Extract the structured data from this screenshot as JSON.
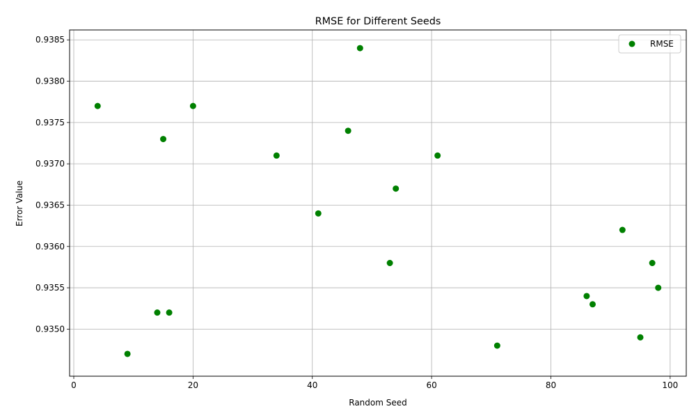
{
  "chart_data": {
    "type": "scatter",
    "title": "RMSE for Different Seeds",
    "xlabel": "Random Seed",
    "ylabel": "Error Value",
    "xlim": [
      -0.7,
      102.7
    ],
    "ylim": [
      0.93443,
      0.93862
    ],
    "xticks": [
      0,
      20,
      40,
      60,
      80,
      100
    ],
    "yticks": [
      0.935,
      0.9355,
      0.936,
      0.9365,
      0.937,
      0.9375,
      0.938,
      0.9385
    ],
    "grid": true,
    "legend": {
      "placement": "top-right"
    },
    "series": [
      {
        "name": "RMSE",
        "color": "#008000",
        "x": [
          4,
          9,
          14,
          15,
          16,
          20,
          34,
          41,
          46,
          48,
          53,
          54,
          61,
          71,
          86,
          87,
          92,
          95,
          97,
          98
        ],
        "y": [
          0.9377,
          0.9347,
          0.9352,
          0.9373,
          0.9352,
          0.9377,
          0.9371,
          0.9364,
          0.9374,
          0.9384,
          0.9358,
          0.9367,
          0.9371,
          0.9348,
          0.9354,
          0.9353,
          0.9362,
          0.9349,
          0.9358,
          0.9355
        ]
      }
    ]
  }
}
